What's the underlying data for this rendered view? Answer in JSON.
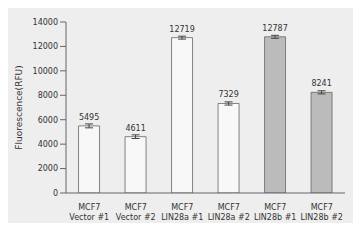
{
  "chart_data": {
    "type": "bar",
    "categories": [
      "MCF7\nVector #1",
      "MCF7\nVector #2",
      "MCF7\nLIN28a #1",
      "MCF7\nLIN28a #2",
      "MCF7\nLIN28b #1",
      "MCF7\nLIN28b #2"
    ],
    "values": [
      5495,
      4611,
      12719,
      7329,
      12787,
      8241
    ],
    "errors": [
      160,
      150,
      120,
      130,
      120,
      130
    ],
    "colors": [
      "#f8f8f8",
      "#f8f8f8",
      "#f8f8f8",
      "#f8f8f8",
      "#bbbbbb",
      "#bbbbbb"
    ],
    "data_labels": true,
    "ylabel": "Fluorescence(RFU)",
    "ylim": [
      0,
      14000
    ],
    "yticks": [
      0,
      2000,
      4000,
      6000,
      8000,
      10000,
      12000,
      14000
    ],
    "grid": false
  }
}
